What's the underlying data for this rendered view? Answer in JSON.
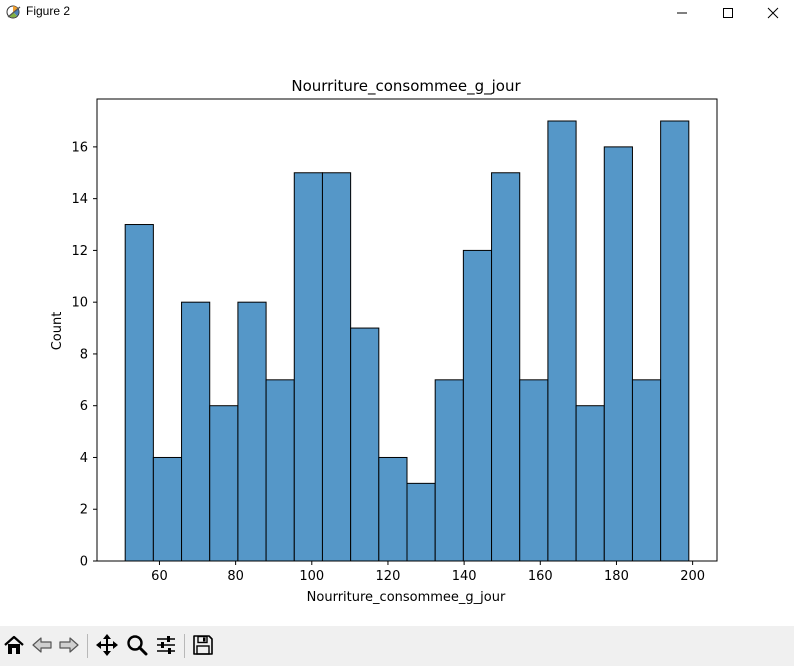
{
  "window": {
    "title": "Figure 2",
    "icon": "matplotlib-figure-icon",
    "controls": [
      "minimize-icon",
      "maximize-icon",
      "close-icon"
    ]
  },
  "chart_data": {
    "type": "bar",
    "title": "Nourriture_consommee_g_jour",
    "xlabel": "Nourriture_consommee_g_jour",
    "ylabel": "Count",
    "bin_edges": [
      51,
      58.4,
      65.8,
      73.2,
      80.6,
      88,
      95.4,
      102.8,
      110.2,
      117.6,
      125,
      132.4,
      139.8,
      147.2,
      154.6,
      162,
      169.4,
      176.8,
      184.2,
      191.6,
      199
    ],
    "values": [
      13,
      4,
      10,
      6,
      10,
      7,
      15,
      15,
      9,
      4,
      3,
      7,
      12,
      15,
      7,
      17,
      6,
      16,
      7,
      17
    ],
    "xlim": [
      43.6,
      206.4
    ],
    "ylim": [
      0,
      17.85
    ],
    "xticks": [
      60,
      80,
      100,
      120,
      140,
      160,
      180,
      200
    ],
    "yticks": [
      0,
      2,
      4,
      6,
      8,
      10,
      12,
      14,
      16
    ],
    "bar_color": "#5597c8",
    "edge_color": "#000000",
    "grid": false,
    "legend": "none"
  },
  "toolbar": {
    "items": [
      {
        "name": "home-icon"
      },
      {
        "name": "back-icon"
      },
      {
        "name": "forward-icon"
      },
      {
        "name": "pan-icon"
      },
      {
        "name": "zoom-icon"
      },
      {
        "name": "configure-subplots-icon"
      },
      {
        "name": "save-icon"
      }
    ]
  }
}
